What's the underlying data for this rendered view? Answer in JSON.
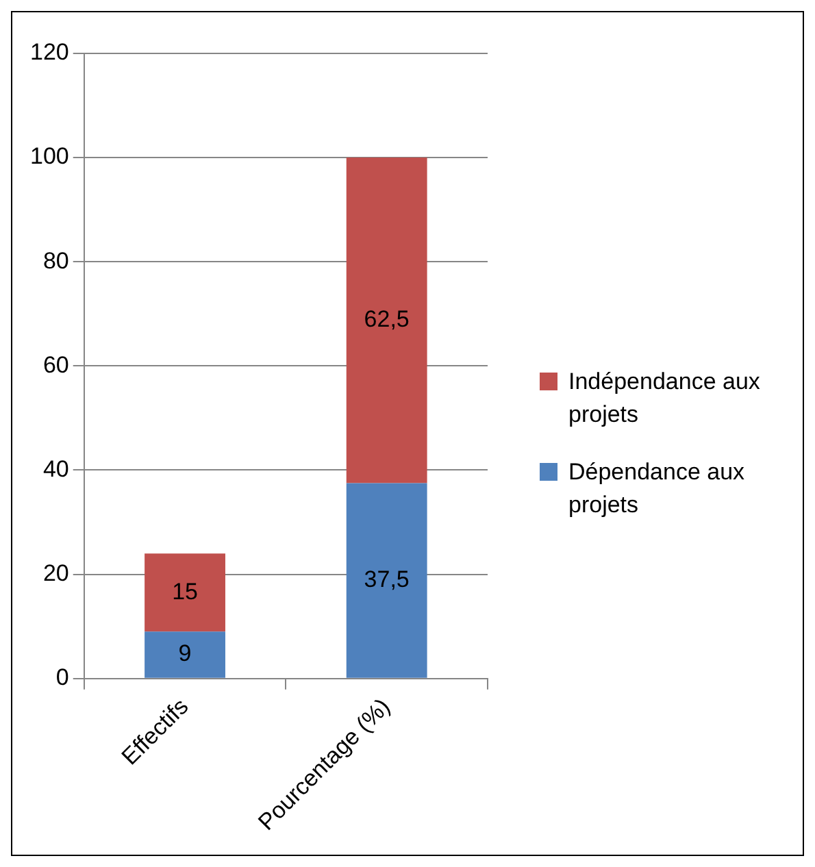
{
  "chart_data": {
    "type": "bar",
    "stacked": true,
    "categories": [
      "Effectifs",
      "Pourcentage (%)"
    ],
    "series": [
      {
        "name": "Dépendance aux projets",
        "color": "#4f81bd",
        "values": [
          9,
          37.5
        ],
        "value_labels": [
          "9",
          "37,5"
        ]
      },
      {
        "name": "Indépendance aux projets",
        "color": "#c0504d",
        "values": [
          15,
          62.5
        ],
        "value_labels": [
          "15",
          "62,5"
        ]
      }
    ],
    "ylim": [
      0,
      120
    ],
    "yticks": [
      0,
      20,
      40,
      60,
      80,
      100,
      120
    ],
    "grid": "y",
    "legend": "right"
  }
}
